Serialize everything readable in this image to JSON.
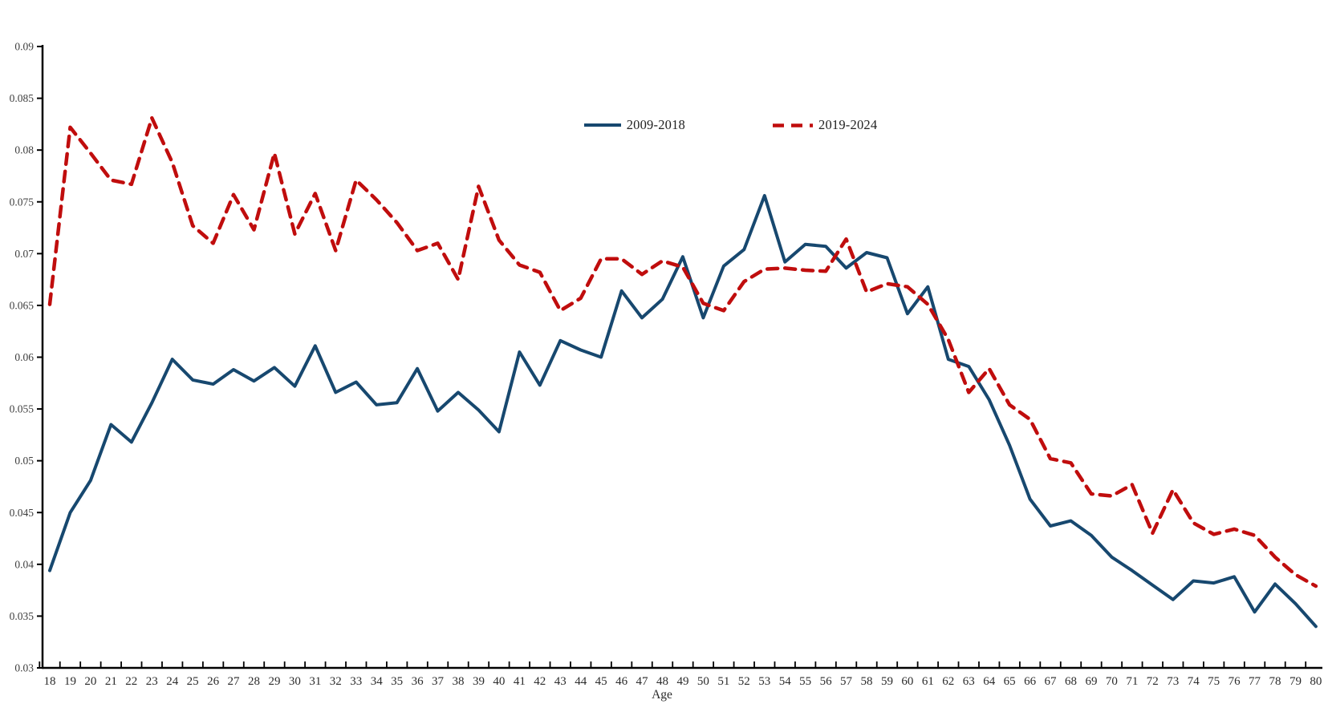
{
  "page": {
    "background": "#ffffff"
  },
  "axes": {
    "x_title": "Age",
    "y_tick_labels": [
      "0.03",
      "0.035",
      "0.04",
      "0.045",
      "0.05",
      "0.055",
      "0.06",
      "0.065",
      "0.07",
      "0.075",
      "0.08",
      "0.085",
      "0.09"
    ],
    "x_tick_labels_first": "18",
    "x_tick_labels_last": "80"
  },
  "chart_data": {
    "type": "line",
    "title": "",
    "xlabel": "Age",
    "ylabel": "",
    "grid": false,
    "legend_position": "top-center-inside",
    "xlim": [
      18,
      80
    ],
    "ylim": [
      0.03,
      0.09
    ],
    "ytick_step": 0.005,
    "x": [
      18,
      19,
      20,
      21,
      22,
      23,
      24,
      25,
      26,
      27,
      28,
      29,
      30,
      31,
      32,
      33,
      34,
      35,
      36,
      37,
      38,
      39,
      40,
      41,
      42,
      43,
      44,
      45,
      46,
      47,
      48,
      49,
      50,
      51,
      52,
      53,
      54,
      55,
      56,
      57,
      58,
      59,
      60,
      61,
      62,
      63,
      64,
      65,
      66,
      67,
      68,
      69,
      70,
      71,
      72,
      73,
      74,
      75,
      76,
      77,
      78,
      79,
      80
    ],
    "series": [
      {
        "name": "2009-2018",
        "color": "#17486F",
        "style": "solid",
        "values": [
          0.0394,
          0.045,
          0.0481,
          0.0535,
          0.0518,
          0.0556,
          0.0598,
          0.0578,
          0.0574,
          0.0588,
          0.0577,
          0.059,
          0.0572,
          0.0611,
          0.0566,
          0.0576,
          0.0554,
          0.0556,
          0.0589,
          0.0548,
          0.0566,
          0.0549,
          0.0528,
          0.0605,
          0.0573,
          0.0616,
          0.0607,
          0.06,
          0.0664,
          0.0638,
          0.0656,
          0.0697,
          0.0638,
          0.0688,
          0.0704,
          0.0756,
          0.0692,
          0.0709,
          0.0707,
          0.0686,
          0.0701,
          0.0696,
          0.0642,
          0.0668,
          0.0598,
          0.0591,
          0.0559,
          0.0515,
          0.0463,
          0.0437,
          0.0442,
          0.0428,
          0.0407,
          0.0394,
          0.038,
          0.0366,
          0.0384,
          0.0382,
          0.0388,
          0.0354,
          0.0381,
          0.0362,
          0.034
        ]
      },
      {
        "name": "2019-2024",
        "color": "#C00D0D",
        "style": "dashed",
        "values": [
          0.0651,
          0.0822,
          0.0797,
          0.0771,
          0.0767,
          0.0831,
          0.0788,
          0.0727,
          0.071,
          0.0757,
          0.0723,
          0.0797,
          0.0719,
          0.0758,
          0.0703,
          0.0771,
          0.0752,
          0.073,
          0.0703,
          0.071,
          0.0675,
          0.0765,
          0.0713,
          0.0689,
          0.0682,
          0.0645,
          0.0657,
          0.0695,
          0.0695,
          0.068,
          0.0693,
          0.0687,
          0.0652,
          0.0645,
          0.0673,
          0.0685,
          0.0686,
          0.0684,
          0.0683,
          0.0714,
          0.0663,
          0.0671,
          0.0668,
          0.0651,
          0.0617,
          0.0566,
          0.0589,
          0.0554,
          0.054,
          0.0502,
          0.0498,
          0.0468,
          0.0466,
          0.0477,
          0.043,
          0.0472,
          0.044,
          0.0429,
          0.0434,
          0.0428,
          0.0407,
          0.039,
          0.0379
        ]
      }
    ]
  }
}
